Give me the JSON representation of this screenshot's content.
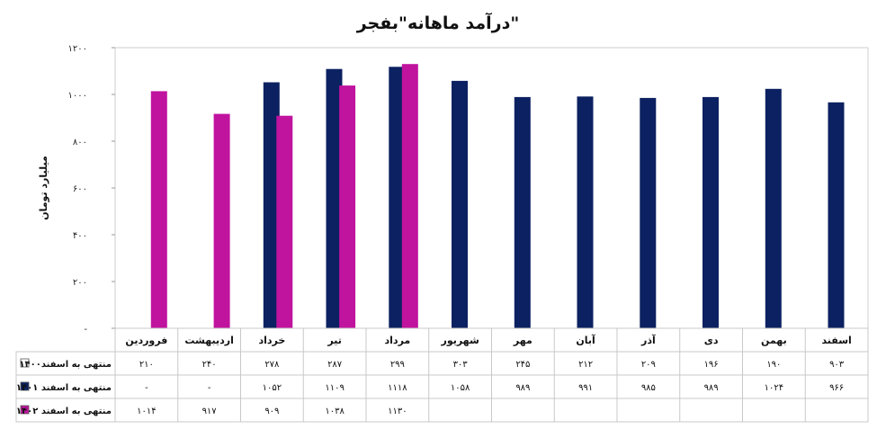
{
  "chart_data": {
    "type": "bar",
    "title": "درآمد ماهانه\"بفجر\"",
    "ylabel": "میلیارد تومان",
    "ylim": [
      0,
      1200
    ],
    "yticks": [
      0,
      200,
      400,
      600,
      800,
      1000,
      1200
    ],
    "ytick_labels": [
      "-",
      "۲۰۰",
      "۴۰۰",
      "۶۰۰",
      "۸۰۰",
      "۱۰۰۰",
      "۱۲۰۰"
    ],
    "grid": false,
    "legend": "data-table",
    "categories": [
      "فروردین",
      "اردیبهشت",
      "خرداد",
      "تیر",
      "مرداد",
      "شهریور",
      "مهر",
      "آبان",
      "آذر",
      "دی",
      "بهمن",
      "اسفند"
    ],
    "series": [
      {
        "name": "منتهی به اسفند۱۴۰۰",
        "color": "#ffffff",
        "values": [
          210,
          240,
          278,
          287,
          299,
          303,
          245,
          212,
          209,
          196,
          190,
          903
        ],
        "labels": [
          "۲۱۰",
          "۲۴۰",
          "۲۷۸",
          "۲۸۷",
          "۲۹۹",
          "۳۰۳",
          "۲۴۵",
          "۲۱۲",
          "۲۰۹",
          "۱۹۶",
          "۱۹۰",
          "۹۰۳"
        ]
      },
      {
        "name": "منتهی به اسفند ۱۴۰۱",
        "color": "#0b2161",
        "values": [
          null,
          null,
          1052,
          1109,
          1118,
          1058,
          989,
          991,
          985,
          989,
          1024,
          966
        ],
        "labels": [
          "-",
          "-",
          "۱۰۵۲",
          "۱۱۰۹",
          "۱۱۱۸",
          "۱۰۵۸",
          "۹۸۹",
          "۹۹۱",
          "۹۸۵",
          "۹۸۹",
          "۱۰۲۴",
          "۹۶۶"
        ]
      },
      {
        "name": "منتهی به اسفند ۱۴۰۲",
        "color": "#c0139e",
        "values": [
          1014,
          917,
          909,
          1038,
          1130,
          null,
          null,
          null,
          null,
          null,
          null,
          null
        ],
        "labels": [
          "۱۰۱۴",
          "۹۱۷",
          "۹۰۹",
          "۱۰۳۸",
          "۱۱۳۰",
          "",
          "",
          "",
          "",
          "",
          "",
          ""
        ]
      }
    ]
  }
}
